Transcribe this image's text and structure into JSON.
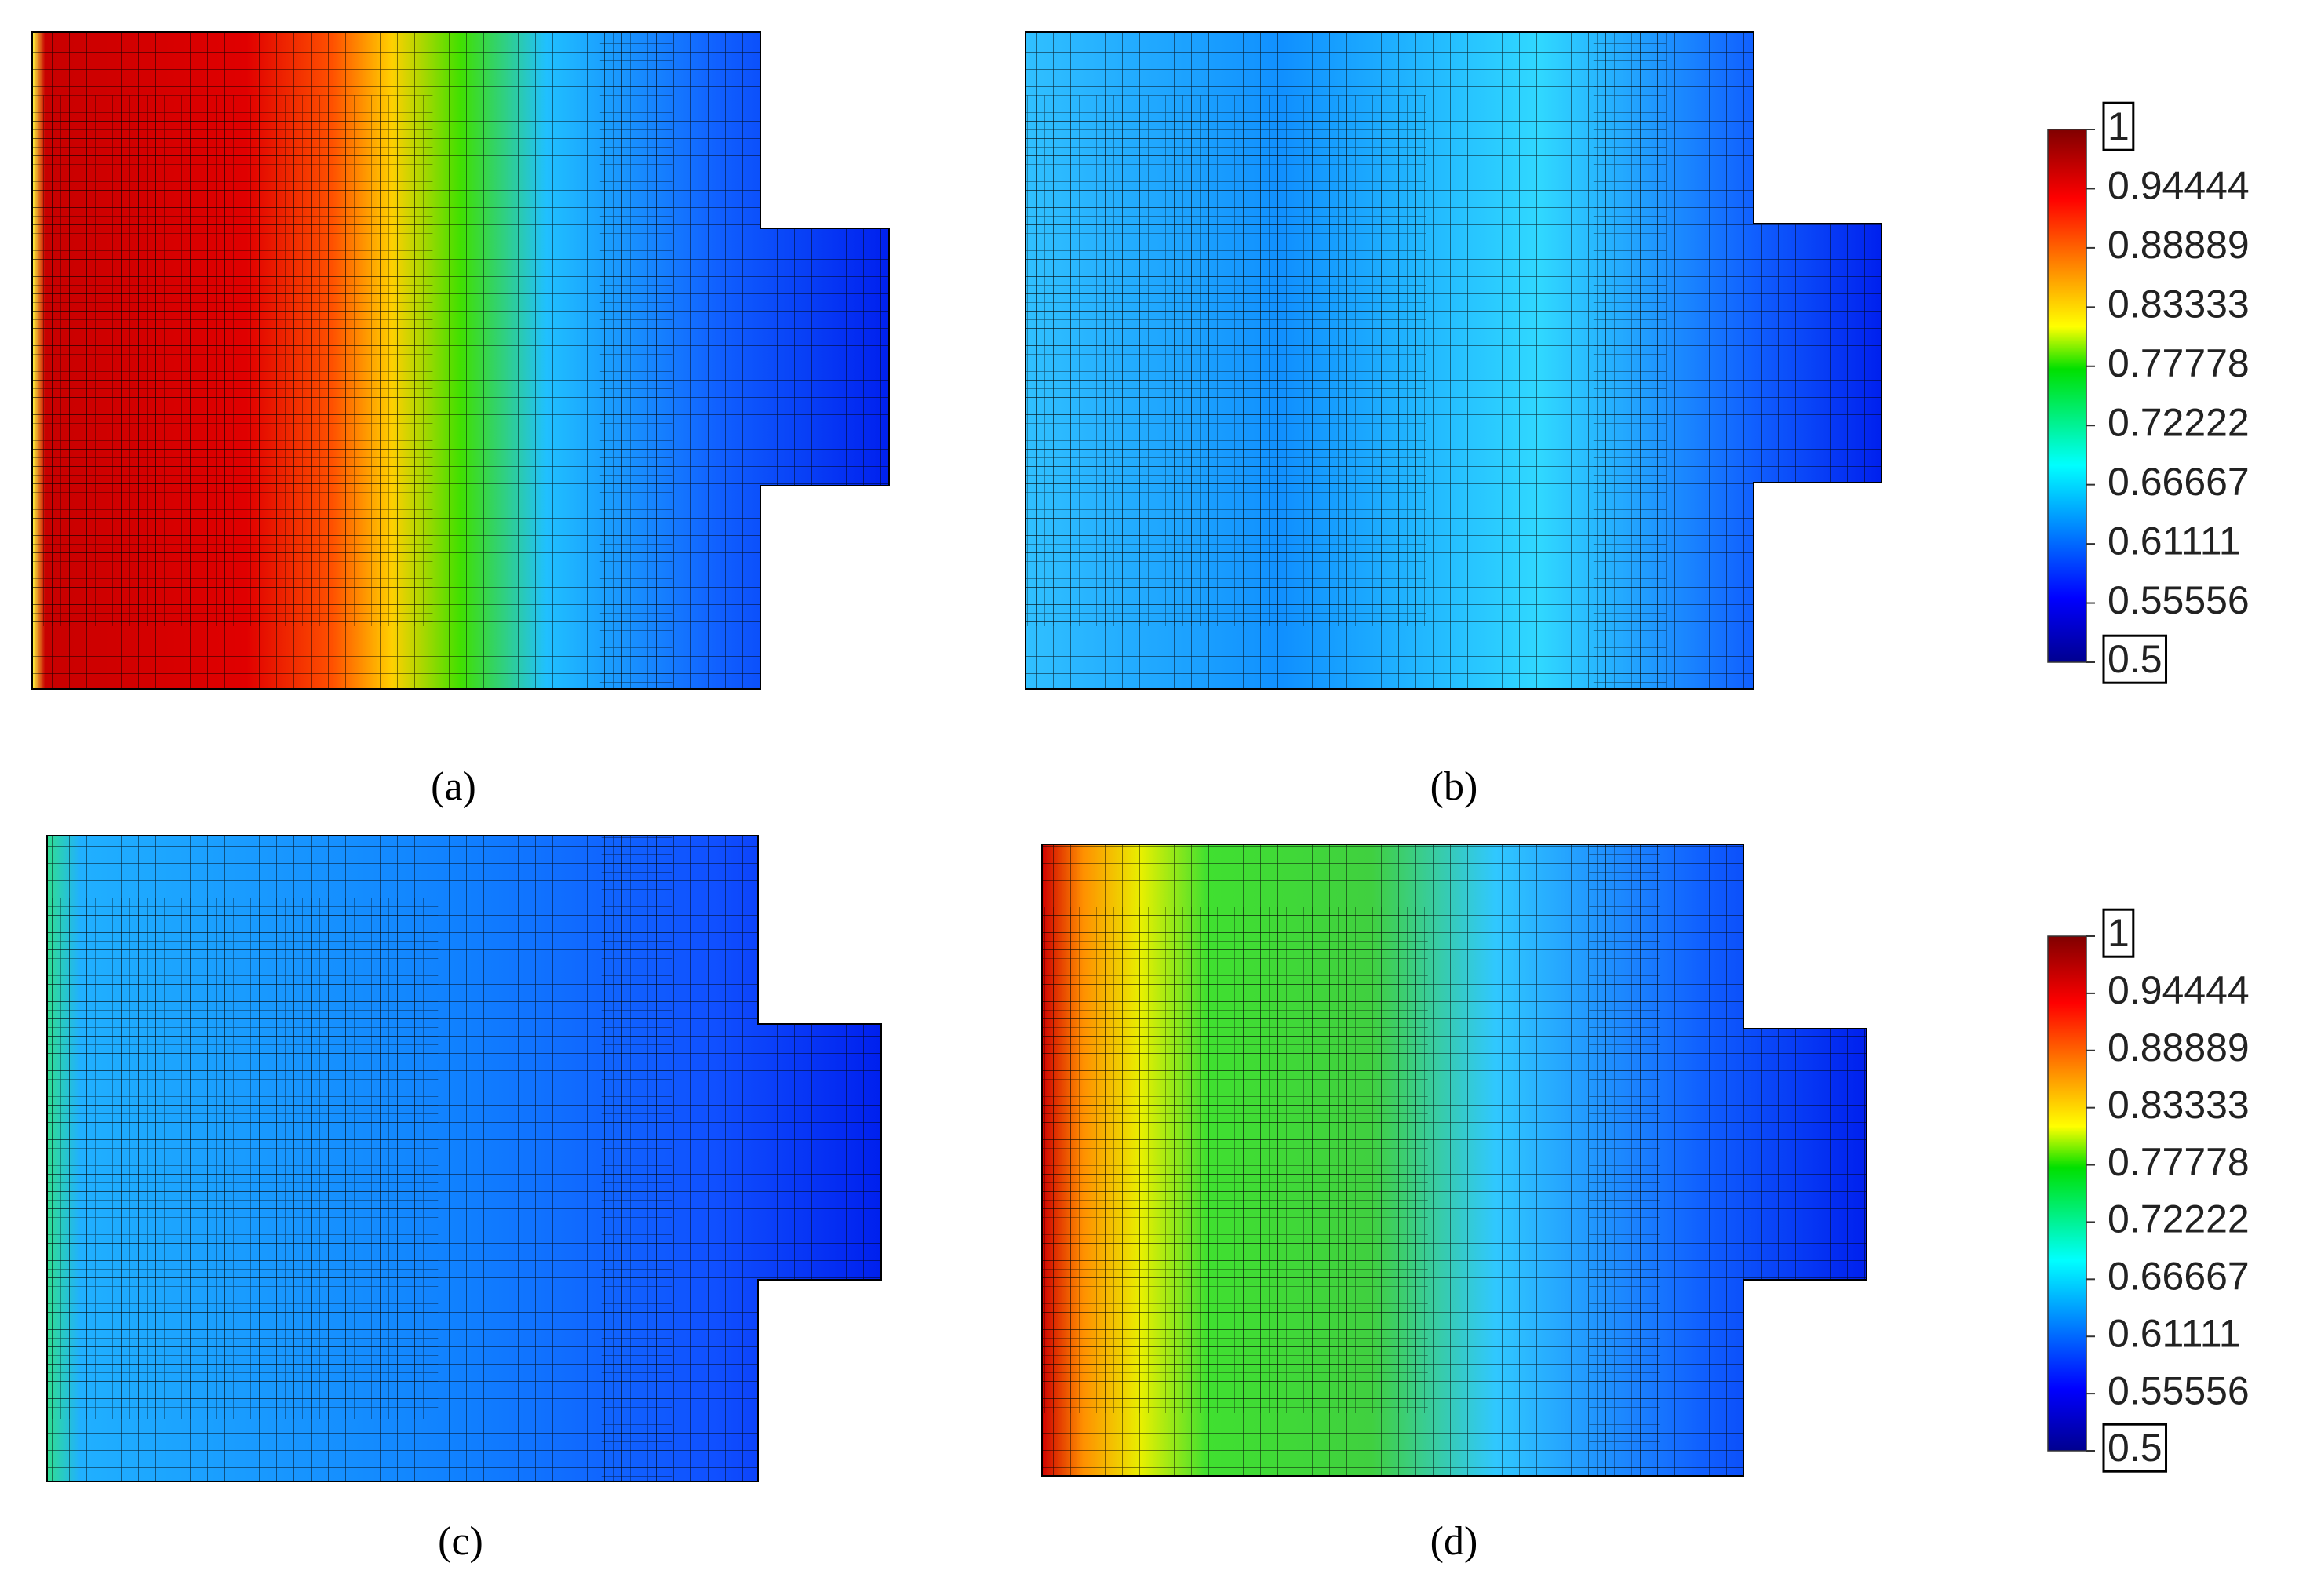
{
  "panels": [
    {
      "label": "(a)"
    },
    {
      "label": "(b)"
    },
    {
      "label": "(c)"
    },
    {
      "label": "(d)"
    }
  ],
  "colorbars": [
    {
      "lim": [
        0.5,
        1
      ],
      "ticks": [
        1,
        0.94444,
        0.88889,
        0.83333,
        0.77778,
        0.72222,
        0.66667,
        0.61111,
        0.55556,
        0.5
      ]
    },
    {
      "lim": [
        0.5,
        1
      ],
      "ticks": [
        1,
        0.94444,
        0.88889,
        0.83333,
        0.77778,
        0.72222,
        0.66667,
        0.61111,
        0.55556,
        0.5
      ]
    }
  ]
}
